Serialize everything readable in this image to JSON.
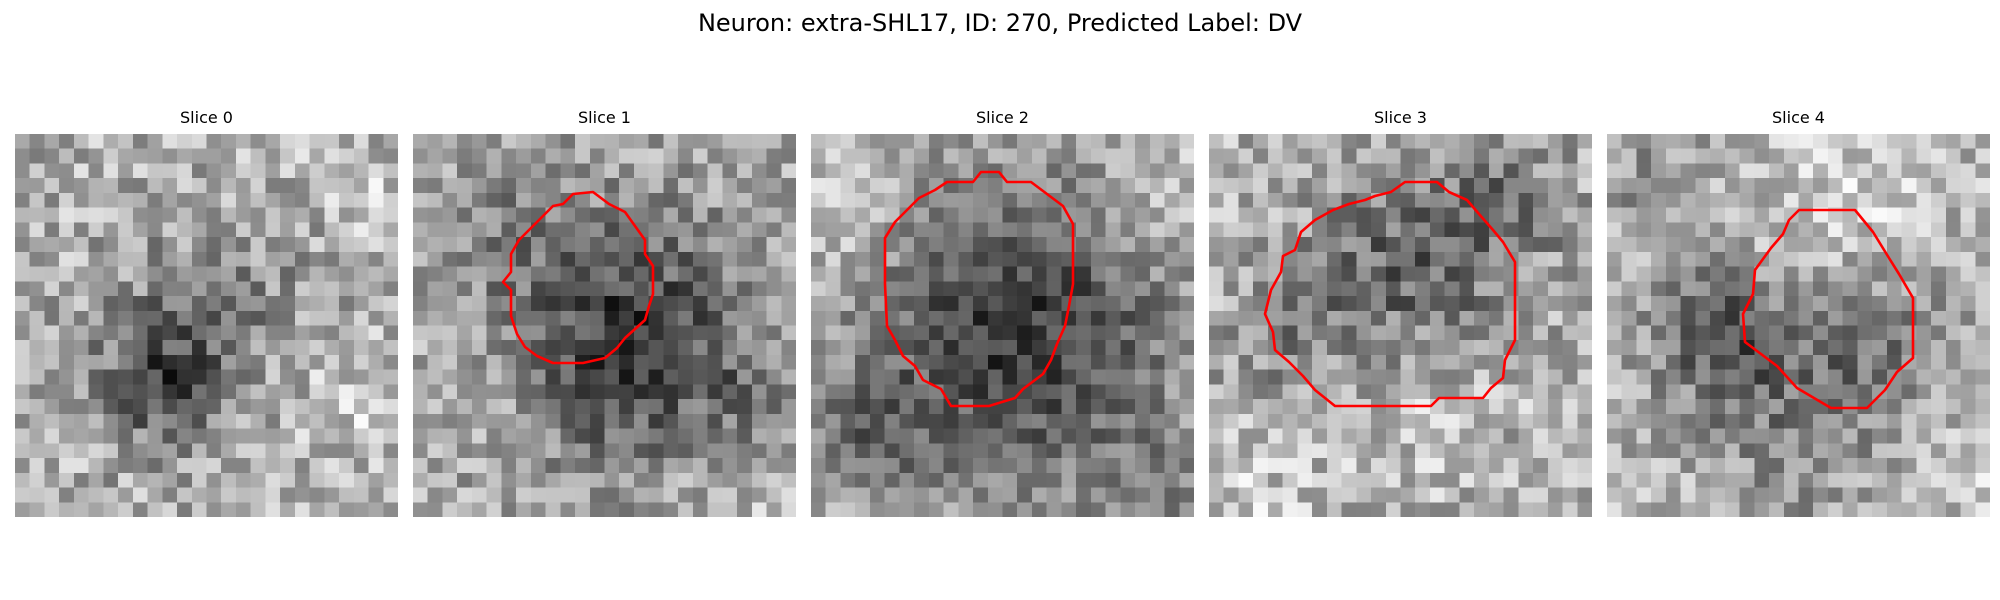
{
  "figure": {
    "title": "Neuron: extra-SHL17, ID: 270, Predicted Label: DV"
  },
  "style": {
    "contour_color": "#ff0000"
  },
  "slices": [
    {
      "title": "Slice 0",
      "has_contour": false
    },
    {
      "title": "Slice 1",
      "has_contour": true
    },
    {
      "title": "Slice 2",
      "has_contour": true
    },
    {
      "title": "Slice 3",
      "has_contour": true
    },
    {
      "title": "Slice 4",
      "has_contour": true
    }
  ]
}
